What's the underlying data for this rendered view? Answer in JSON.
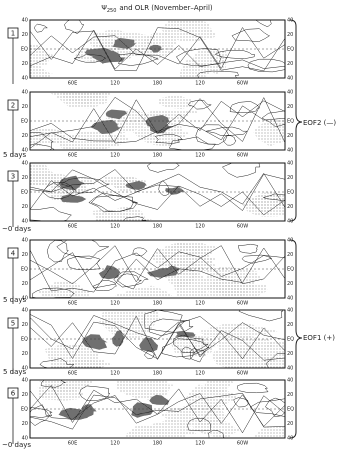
{
  "title": {
    "symbol": "Ψ",
    "subscript": "250",
    "rest": "and OLR (November–April)"
  },
  "panels": [
    {
      "label": "1"
    },
    {
      "label": "2"
    },
    {
      "label": "3"
    },
    {
      "label": "4"
    },
    {
      "label": "5"
    },
    {
      "label": "6"
    }
  ],
  "lat_labels": [
    "40",
    "20",
    "EQ",
    "20",
    "40"
  ],
  "lon_labels": [
    "60E",
    "120",
    "180",
    "120",
    "60W"
  ],
  "intervals": [
    "5 days",
    "5 days",
    "5 days"
  ],
  "zero_days": [
    "~0 days",
    "~0 days"
  ],
  "groups": [
    {
      "label": "EOF2 (—)"
    },
    {
      "label": "EOF1 (+)"
    }
  ]
}
